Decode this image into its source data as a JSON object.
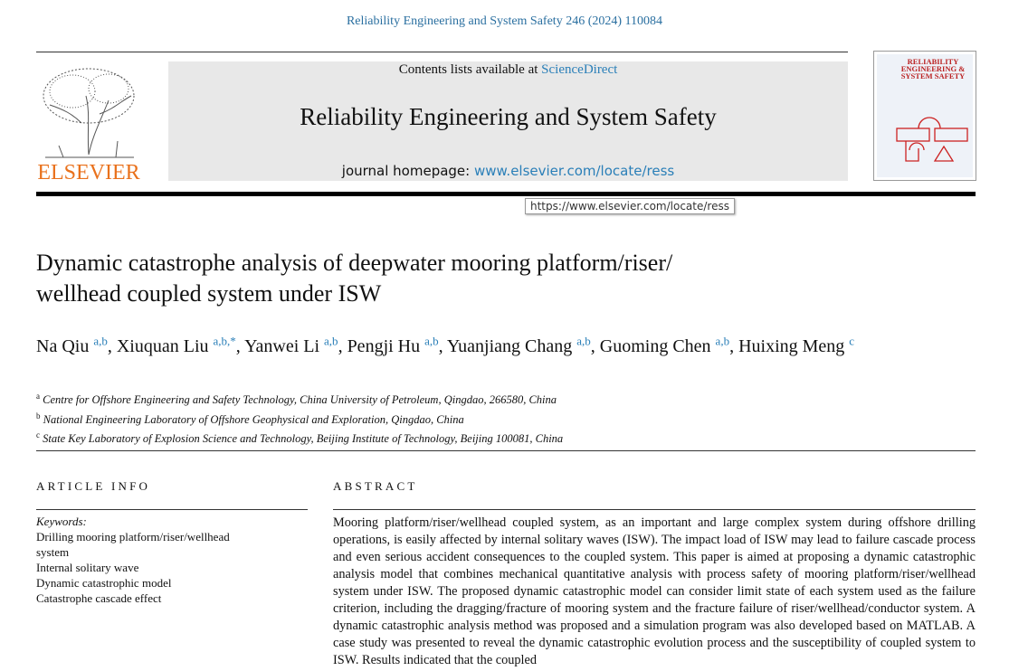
{
  "citation": "Reliability Engineering and System Safety 246 (2024) 110084",
  "header": {
    "contents_prefix": "Contents lists available at",
    "contents_link": "ScienceDirect",
    "journal": "Reliability Engineering and System Safety",
    "homepage_prefix": "journal homepage:",
    "homepage_link": "www.elsevier.com/locate/ress",
    "publisher": "ELSEVIER",
    "tooltip": "https://www.elsevier.com/locate/ress",
    "cover_title": "RELIABILITY ENGINEERING & SYSTEM SAFETY"
  },
  "title": [
    "Dynamic catastrophe analysis of deepwater mooring platform/riser/",
    "wellhead coupled system under ISW"
  ],
  "author_separator": ",",
  "authors": [
    {
      "name": "Na Qiu",
      "sup": "a,b"
    },
    {
      "name": "Xiuquan Liu",
      "sup": "a,b,*"
    },
    {
      "name": "Yanwei Li",
      "sup": "a,b"
    },
    {
      "name": "Pengji Hu",
      "sup": "a,b"
    },
    {
      "name": "Yuanjiang Chang",
      "sup": "a,b"
    },
    {
      "name": "Guoming Chen",
      "sup": "a,b"
    },
    {
      "name": "Huixing Meng",
      "sup": "c"
    }
  ],
  "affiliations": [
    {
      "mark": "a",
      "text": "Centre for Offshore Engineering and Safety Technology, China University of Petroleum, Qingdao, 266580, China"
    },
    {
      "mark": "b",
      "text": "National Engineering Laboratory of Offshore Geophysical and Exploration, Qingdao, China"
    },
    {
      "mark": "c",
      "text": "State Key Laboratory of Explosion Science and Technology, Beijing Institute of Technology, Beijing 100081, China"
    }
  ],
  "article_info": {
    "heading": "ARTICLE INFO",
    "keywords_label": "Keywords:",
    "keywords": [
      "Drilling mooring platform/riser/wellhead system",
      "Internal solitary wave",
      "Dynamic catastrophic model",
      "Catastrophe cascade effect"
    ]
  },
  "abstract": {
    "heading": "ABSTRACT",
    "text": "Mooring platform/riser/wellhead coupled system, as an important and large complex system during offshore drilling operations, is easily affected by internal solitary waves (ISW). The impact load of ISW may lead to failure cascade process and even serious accident consequences to the coupled system. This paper is aimed at proposing a dynamic catastrophic analysis model that combines mechanical quantitative analysis with process safety of mooring platform/riser/wellhead system under ISW. The proposed dynamic catastrophic model can consider limit state of each system used as the failure criterion, including the dragging/fracture of mooring system and the fracture failure of riser/wellhead/conductor system. A dynamic catastrophic analysis method was proposed and a simulation program was also developed based on MATLAB. A case study was presented to reveal the dynamic catastrophic evolution process and the susceptibility of coupled system to ISW. Results indicated that the coupled"
  }
}
